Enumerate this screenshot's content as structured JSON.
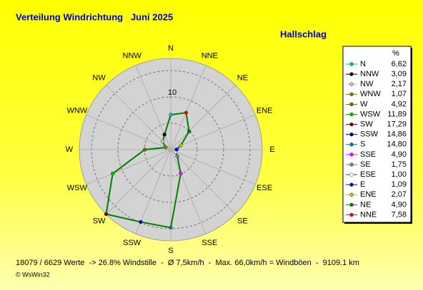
{
  "chart_data": {
    "type": "windrose",
    "title": "Verteilung Windrichtung   Juni 2025",
    "subtitle": "Hallschlag",
    "legend_header": "%",
    "categories": [
      "N",
      "NNW",
      "NW",
      "WNW",
      "W",
      "WSW",
      "SW",
      "SSW",
      "S",
      "SSE",
      "SE",
      "ESE",
      "E",
      "ENE",
      "NE",
      "NNE"
    ],
    "values": [
      6.62,
      3.09,
      2.17,
      1.07,
      4.92,
      11.89,
      17.29,
      14.86,
      14.8,
      4.9,
      1.75,
      1.0,
      1.09,
      2.07,
      4.9,
      7.58
    ],
    "value_labels": [
      "6,62",
      "3,09",
      "2,17",
      "1,07",
      "4,92",
      "11,89",
      "17,29",
      "14,86",
      "14,80",
      "4,90",
      "1,75",
      "1,00",
      "1,09",
      "2,07",
      "4,90",
      "7,58"
    ],
    "colors": [
      "#00c0c0",
      "#000000",
      "#c0c0c0",
      "#808000",
      "#806000",
      "#00c000",
      "#800000",
      "#000080",
      "#008080",
      "#ff00ff",
      "#808080",
      "#ffffff",
      "#0000ff",
      "#c0c000",
      "#008000",
      "#ff0000"
    ],
    "line_color": "#008000",
    "rlim": [
      0,
      17.3
    ],
    "rticks": [
      10
    ],
    "rgrid": [
      5,
      10,
      15
    ],
    "footer": "18079 / 6629 Werte  -> 26.8% Windstille  -  Ø 7,5km/h  -  Max. 66,0km/h = Windböen  -  9109.1 km",
    "copyright": "© WsWin32"
  }
}
